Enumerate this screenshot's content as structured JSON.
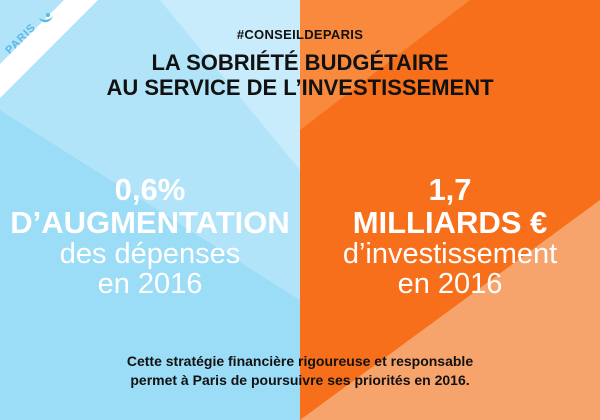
{
  "colors": {
    "blue_light": "#c8ecfb",
    "blue_mid": "#9bdcf6",
    "orange_light": "#f7a46c",
    "orange_main": "#f76f1b",
    "white": "#ffffff",
    "text": "#111111"
  },
  "badge": {
    "label": "PARIS",
    "logo_icon": "paris-boat-logo-icon"
  },
  "header": {
    "hashtag": "#CONSEILDEPARIS",
    "title_line1": "LA SOBRIÉTÉ BUDGÉTAIRE",
    "title_line2": "AU SERVICE DE L’INVESTISSEMENT"
  },
  "left_stat": {
    "value": "0,6%",
    "label": "D’AUGMENTATION",
    "line3": "des dépenses",
    "line4": "en 2016"
  },
  "right_stat": {
    "value": "1,7",
    "label": "MILLIARDS €",
    "line3": "d’investissement",
    "line4": "en 2016"
  },
  "footer": {
    "line1": "Cette stratégie financière rigoureuse et responsable",
    "line2": "permet à Paris de poursuivre ses priorités en 2016."
  }
}
